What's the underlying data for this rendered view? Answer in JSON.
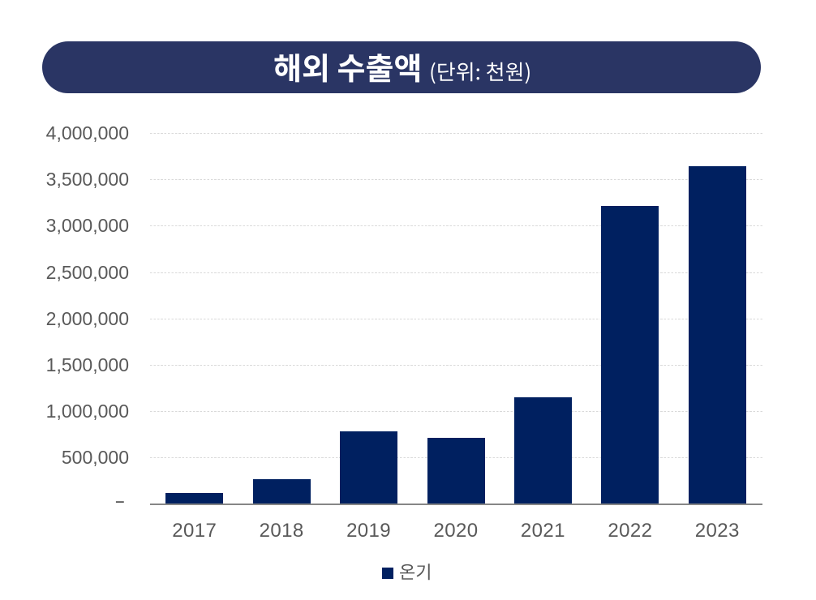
{
  "page": {
    "background": "#FFFFFF"
  },
  "title": {
    "text": "해외 수출액",
    "unit_label": "(단위: 천원)",
    "bg_color": "#2A3564",
    "text_color": "#FFFFFF"
  },
  "legend": {
    "position": "bottom",
    "items": [
      {
        "label": "온기",
        "color": "#002060"
      }
    ]
  },
  "y_axis": {
    "tick_labels_bottom_to_top": [
      "-",
      "500,000",
      "1,000,000",
      "1,500,000",
      "2,000,000",
      "2,500,000",
      "3,000,000",
      "3,500,000",
      "4,000,000"
    ],
    "text_color": "#595959"
  },
  "x_axis": {
    "categories": [
      "2017",
      "2018",
      "2019",
      "2020",
      "2021",
      "2022",
      "2023"
    ],
    "text_color": "#595959"
  },
  "chart_data": {
    "type": "bar",
    "title": "해외 수출액",
    "subtitle": "(단위: 천원)",
    "unit": "천원",
    "categories": [
      "2017",
      "2018",
      "2019",
      "2020",
      "2021",
      "2022",
      "2023"
    ],
    "series": [
      {
        "name": "온기",
        "color": "#002060",
        "values": [
          125000,
          270000,
          785000,
          720000,
          1150000,
          3220000,
          3650000
        ]
      }
    ],
    "ylim": [
      0,
      4000000
    ],
    "ytick_interval": 500000,
    "grid": true,
    "gridline_style": "dashed",
    "legend_position": "bottom"
  }
}
